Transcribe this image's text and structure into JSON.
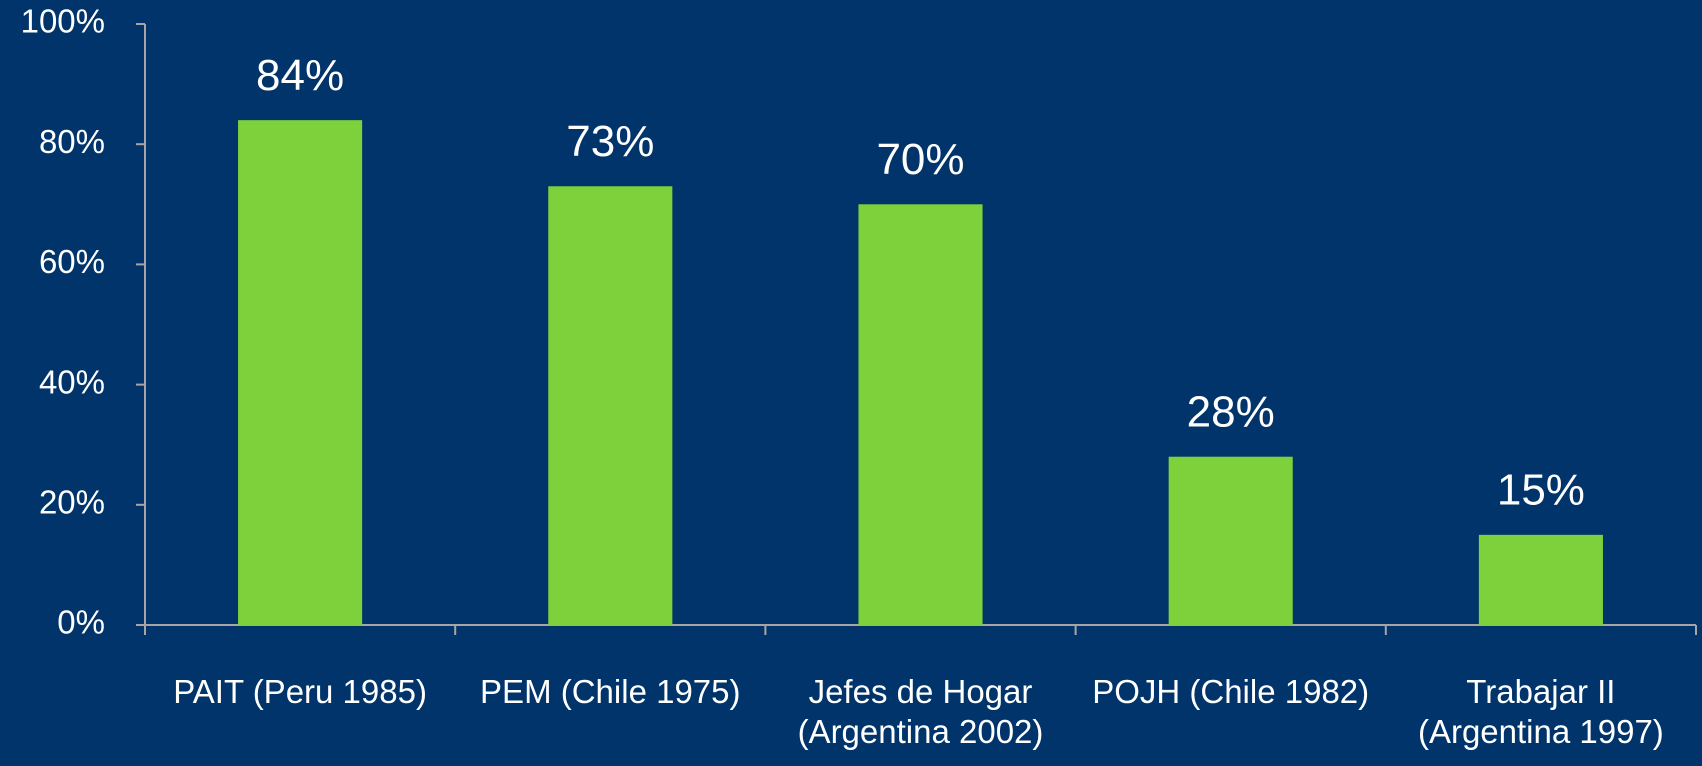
{
  "chart_data": {
    "type": "bar",
    "categories": [
      "PAIT (Peru 1985)",
      "PEM (Chile 1975)",
      "Jefes de Hogar (Argentina 2002)",
      "POJH (Chile 1982)",
      "Trabajar II (Argentina 1997)"
    ],
    "values": [
      84,
      73,
      70,
      28,
      15
    ],
    "value_labels": [
      "84%",
      "73%",
      "70%",
      "28%",
      "15%"
    ],
    "color": "#7fd13b",
    "ylim": [
      0,
      100
    ],
    "yticks": [
      {
        "value": 0,
        "label": "0%"
      },
      {
        "value": 20,
        "label": "20%"
      },
      {
        "value": 40,
        "label": "40%"
      },
      {
        "value": 60,
        "label": "60%"
      },
      {
        "value": 80,
        "label": "80%"
      },
      {
        "value": 100,
        "label": "100%"
      }
    ],
    "grid": false
  }
}
